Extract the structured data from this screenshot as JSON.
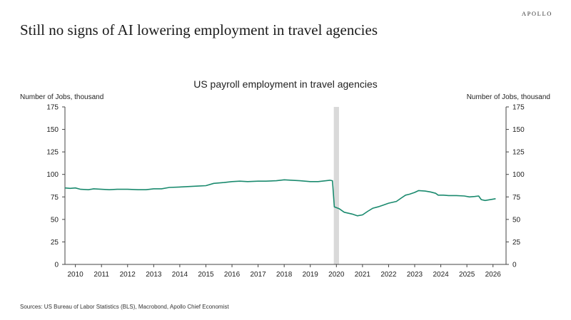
{
  "brand": "APOLLO",
  "headline": "Still no signs of  AI lowering employment in travel agencies",
  "source": "Sources: US Bureau of Labor Statistics (BLS), Macrobond, Apollo Chief Economist",
  "colors": {
    "line": "#1a8a6e",
    "shade": "#d9d9d9",
    "axis": "#444444"
  },
  "chart_data": {
    "type": "line",
    "title": "US payroll employment in travel agencies",
    "ylabel_left": "Number of Jobs, thousand",
    "ylabel_right": "Number of Jobs, thousand",
    "ylim": [
      0,
      175
    ],
    "yticks": [
      0,
      25,
      50,
      75,
      100,
      125,
      150,
      175
    ],
    "xlim": [
      2009.6,
      2026.5
    ],
    "xticks": [
      "2010",
      "2011",
      "2012",
      "2013",
      "2014",
      "2015",
      "2016",
      "2017",
      "2018",
      "2019",
      "2020",
      "2021",
      "2022",
      "2023",
      "2024",
      "2025",
      "2026"
    ],
    "grid": false,
    "shaded_periods": [
      [
        2019.9,
        2020.1
      ]
    ],
    "series": [
      {
        "points": [
          [
            2009.6,
            85
          ],
          [
            2009.8,
            84.5
          ],
          [
            2010.0,
            85
          ],
          [
            2010.2,
            83.5
          ],
          [
            2010.5,
            83
          ],
          [
            2010.7,
            84
          ],
          [
            2011.0,
            83.5
          ],
          [
            2011.3,
            83
          ],
          [
            2011.6,
            83.5
          ],
          [
            2012.0,
            83.5
          ],
          [
            2012.4,
            83
          ],
          [
            2012.7,
            83
          ],
          [
            2013.0,
            84
          ],
          [
            2013.3,
            84
          ],
          [
            2013.6,
            85.5
          ],
          [
            2014.0,
            86
          ],
          [
            2014.3,
            86.5
          ],
          [
            2014.7,
            87
          ],
          [
            2015.0,
            87.5
          ],
          [
            2015.3,
            90
          ],
          [
            2015.7,
            91
          ],
          [
            2016.0,
            92
          ],
          [
            2016.3,
            92.5
          ],
          [
            2016.6,
            92
          ],
          [
            2017.0,
            92.5
          ],
          [
            2017.3,
            92.5
          ],
          [
            2017.7,
            93
          ],
          [
            2018.0,
            94
          ],
          [
            2018.3,
            93.5
          ],
          [
            2018.6,
            93
          ],
          [
            2019.0,
            92
          ],
          [
            2019.3,
            92
          ],
          [
            2019.6,
            93
          ],
          [
            2019.75,
            93.5
          ],
          [
            2019.85,
            93
          ],
          [
            2019.92,
            64
          ],
          [
            2020.1,
            62
          ],
          [
            2020.3,
            58
          ],
          [
            2020.6,
            56
          ],
          [
            2020.8,
            54
          ],
          [
            2021.0,
            55
          ],
          [
            2021.2,
            59
          ],
          [
            2021.4,
            62.5
          ],
          [
            2021.6,
            64
          ],
          [
            2021.8,
            66
          ],
          [
            2022.0,
            68
          ],
          [
            2022.3,
            70
          ],
          [
            2022.5,
            74
          ],
          [
            2022.65,
            77
          ],
          [
            2022.8,
            78
          ],
          [
            2023.0,
            80
          ],
          [
            2023.15,
            82
          ],
          [
            2023.4,
            81.5
          ],
          [
            2023.6,
            80.5
          ],
          [
            2023.8,
            79
          ],
          [
            2023.9,
            77
          ],
          [
            2024.1,
            77
          ],
          [
            2024.3,
            76.5
          ],
          [
            2024.6,
            76.5
          ],
          [
            2024.9,
            76
          ],
          [
            2025.1,
            75
          ],
          [
            2025.3,
            75.5
          ],
          [
            2025.45,
            76
          ],
          [
            2025.55,
            72
          ],
          [
            2025.7,
            71
          ],
          [
            2025.9,
            72
          ],
          [
            2026.1,
            73
          ]
        ]
      }
    ]
  }
}
